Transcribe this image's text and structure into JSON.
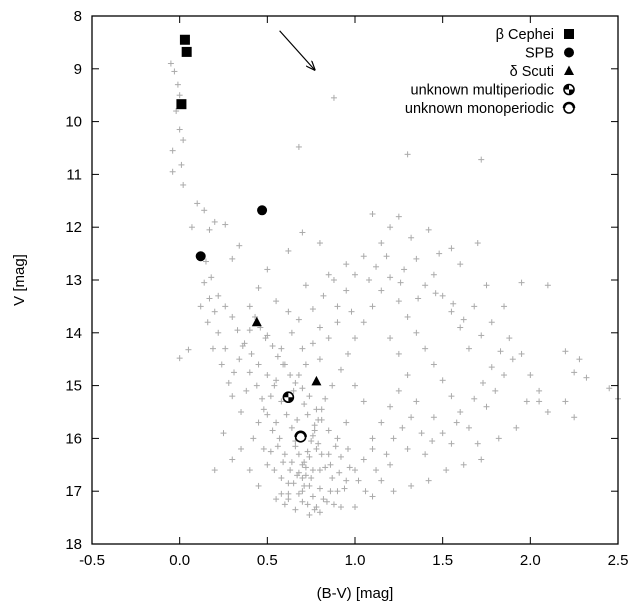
{
  "chart_data": {
    "type": "scatter",
    "title": "",
    "xlabel": "(B-V) [mag]",
    "ylabel": "V [mag]",
    "xlim": [
      -0.5,
      2.5
    ],
    "ylim": [
      18,
      8
    ],
    "y_inverted": true,
    "grid": false,
    "legend_position": "top-right",
    "xticks": [
      -0.5,
      0.0,
      0.5,
      1.0,
      1.5,
      2.0,
      2.5
    ],
    "xtick_labels": [
      "-0.5",
      "0.0",
      "0.5",
      "1.0",
      "1.5",
      "2.0",
      "2.5"
    ],
    "yticks": [
      8,
      9,
      10,
      11,
      12,
      13,
      14,
      15,
      16,
      17,
      18
    ],
    "ytick_labels": [
      "8",
      "9",
      "10",
      "11",
      "12",
      "13",
      "14",
      "15",
      "16",
      "17",
      "18"
    ],
    "background_color": "#aaaaaa",
    "reddening_arrow": {
      "from": [
        0.57,
        8.28
      ],
      "to": [
        0.77,
        9.02
      ]
    },
    "series": [
      {
        "name": "β Cephei",
        "marker": "square",
        "color": "#000000",
        "points": [
          [
            0.03,
            8.45
          ],
          [
            0.04,
            8.68
          ],
          [
            0.01,
            9.67
          ]
        ]
      },
      {
        "name": "SPB",
        "marker": "circle",
        "color": "#000000",
        "points": [
          [
            0.47,
            11.68
          ],
          [
            0.12,
            12.55
          ]
        ]
      },
      {
        "name": "δ Scuti",
        "marker": "triangle",
        "color": "#000000",
        "points": [
          [
            0.44,
            13.8
          ],
          [
            0.78,
            14.92
          ]
        ]
      },
      {
        "name": "unknown multiperiodic",
        "marker": "quarter-circle",
        "color": "#000000",
        "points": [
          [
            0.62,
            15.22
          ]
        ]
      },
      {
        "name": "unknown monoperiodic",
        "marker": "ring",
        "color": "#000000",
        "points": [
          [
            0.69,
            15.97
          ]
        ]
      }
    ],
    "background_stars": {
      "marker": "plus",
      "color": "#aaaaaa",
      "points": [
        [
          -0.05,
          8.9
        ],
        [
          -0.03,
          9.05
        ],
        [
          -0.01,
          9.3
        ],
        [
          0.0,
          9.5
        ],
        [
          -0.02,
          9.8
        ],
        [
          0.0,
          10.15
        ],
        [
          0.02,
          10.35
        ],
        [
          -0.04,
          10.55
        ],
        [
          0.01,
          10.82
        ],
        [
          0.02,
          11.2
        ],
        [
          -0.04,
          10.95
        ],
        [
          0.0,
          14.48
        ],
        [
          0.05,
          14.32
        ],
        [
          0.68,
          10.48
        ],
        [
          0.88,
          9.55
        ],
        [
          1.3,
          10.62
        ],
        [
          1.72,
          10.72
        ],
        [
          0.1,
          11.55
        ],
        [
          0.14,
          11.68
        ],
        [
          0.2,
          11.9
        ],
        [
          0.17,
          12.05
        ],
        [
          0.26,
          11.95
        ],
        [
          0.34,
          12.35
        ],
        [
          0.07,
          12.0
        ],
        [
          0.3,
          12.6
        ],
        [
          0.5,
          12.8
        ],
        [
          0.62,
          12.45
        ],
        [
          0.7,
          12.1
        ],
        [
          0.8,
          12.3
        ],
        [
          0.95,
          12.7
        ],
        [
          1.1,
          11.75
        ],
        [
          1.2,
          12.0
        ],
        [
          1.25,
          11.8
        ],
        [
          1.35,
          12.6
        ],
        [
          1.45,
          12.9
        ],
        [
          1.55,
          12.4
        ],
        [
          1.7,
          12.3
        ],
        [
          1.75,
          13.1
        ],
        [
          1.85,
          13.5
        ],
        [
          1.95,
          13.05
        ],
        [
          2.1,
          13.1
        ],
        [
          2.2,
          14.35
        ],
        [
          2.25,
          14.75
        ],
        [
          2.28,
          14.5
        ],
        [
          2.32,
          14.85
        ],
        [
          1.98,
          15.3
        ],
        [
          2.05,
          15.3
        ],
        [
          2.2,
          15.3
        ],
        [
          2.25,
          15.6
        ],
        [
          2.45,
          15.05
        ],
        [
          2.5,
          15.25
        ],
        [
          0.15,
          12.65
        ],
        [
          0.18,
          12.95
        ],
        [
          0.22,
          13.3
        ],
        [
          0.26,
          13.5
        ],
        [
          0.3,
          13.7
        ],
        [
          0.33,
          13.95
        ],
        [
          0.37,
          14.2
        ],
        [
          0.41,
          14.4
        ],
        [
          0.45,
          14.6
        ],
        [
          0.5,
          14.8
        ],
        [
          0.54,
          15.0
        ],
        [
          0.58,
          15.3
        ],
        [
          0.61,
          15.55
        ],
        [
          0.64,
          15.8
        ],
        [
          0.66,
          16.05
        ],
        [
          0.68,
          16.3
        ],
        [
          0.7,
          16.5
        ],
        [
          0.72,
          16.7
        ],
        [
          0.74,
          16.9
        ],
        [
          0.76,
          17.1
        ],
        [
          0.78,
          17.3
        ],
        [
          0.8,
          17.4
        ],
        [
          0.84,
          17.2
        ],
        [
          0.9,
          17.0
        ],
        [
          0.95,
          16.8
        ],
        [
          1.0,
          16.6
        ],
        [
          1.05,
          16.4
        ],
        [
          1.1,
          16.2
        ],
        [
          0.4,
          16.6
        ],
        [
          0.5,
          16.5
        ],
        [
          0.45,
          16.9
        ],
        [
          0.55,
          17.15
        ],
        [
          0.6,
          17.25
        ],
        [
          0.62,
          17.05
        ],
        [
          0.65,
          16.85
        ],
        [
          0.68,
          16.65
        ],
        [
          0.71,
          16.45
        ],
        [
          0.73,
          16.25
        ],
        [
          0.75,
          16.05
        ],
        [
          0.77,
          15.85
        ],
        [
          0.79,
          15.65
        ],
        [
          0.81,
          15.45
        ],
        [
          0.83,
          15.25
        ],
        [
          0.87,
          15.0
        ],
        [
          0.92,
          14.7
        ],
        [
          0.96,
          14.4
        ],
        [
          1.0,
          14.1
        ],
        [
          1.05,
          13.8
        ],
        [
          1.1,
          13.5
        ],
        [
          1.15,
          13.2
        ],
        [
          1.2,
          12.95
        ],
        [
          0.9,
          13.5
        ],
        [
          0.8,
          13.9
        ],
        [
          0.7,
          14.3
        ],
        [
          0.6,
          14.6
        ],
        [
          0.55,
          14.9
        ],
        [
          0.52,
          15.2
        ],
        [
          0.48,
          15.45
        ],
        [
          0.45,
          15.7
        ],
        [
          0.42,
          16.0
        ],
        [
          0.35,
          16.2
        ],
        [
          0.3,
          16.4
        ],
        [
          0.25,
          15.9
        ],
        [
          0.2,
          16.6
        ],
        [
          0.35,
          15.5
        ],
        [
          0.38,
          15.1
        ],
        [
          0.31,
          14.75
        ],
        [
          0.26,
          14.3
        ],
        [
          0.22,
          14.0
        ],
        [
          0.2,
          13.6
        ],
        [
          0.17,
          13.35
        ],
        [
          0.14,
          13.05
        ],
        [
          0.45,
          13.15
        ],
        [
          0.55,
          13.4
        ],
        [
          0.62,
          13.6
        ],
        [
          0.72,
          13.1
        ],
        [
          0.85,
          12.9
        ],
        [
          0.95,
          13.2
        ],
        [
          1.05,
          12.55
        ],
        [
          1.15,
          12.3
        ],
        [
          1.25,
          13.4
        ],
        [
          1.3,
          13.7
        ],
        [
          1.35,
          14.0
        ],
        [
          1.4,
          14.3
        ],
        [
          1.45,
          14.6
        ],
        [
          1.5,
          14.9
        ],
        [
          1.55,
          15.2
        ],
        [
          1.6,
          15.5
        ],
        [
          1.65,
          15.8
        ],
        [
          1.7,
          16.1
        ],
        [
          1.75,
          15.4
        ],
        [
          1.8,
          15.1
        ],
        [
          1.85,
          14.8
        ],
        [
          1.9,
          14.5
        ],
        [
          1.65,
          14.3
        ],
        [
          1.6,
          13.9
        ],
        [
          1.55,
          13.6
        ],
        [
          1.5,
          13.3
        ],
        [
          1.4,
          13.1
        ],
        [
          1.3,
          14.8
        ],
        [
          1.25,
          15.1
        ],
        [
          1.2,
          15.4
        ],
        [
          1.15,
          15.7
        ],
        [
          1.1,
          16.0
        ],
        [
          1.05,
          15.3
        ],
        [
          1.0,
          15.0
        ],
        [
          0.95,
          15.7
        ],
        [
          0.9,
          16.0
        ],
        [
          0.85,
          16.3
        ],
        [
          0.8,
          16.6
        ],
        [
          0.78,
          16.2
        ],
        [
          0.75,
          16.75
        ],
        [
          0.7,
          17.0
        ],
        [
          0.66,
          17.35
        ],
        [
          0.63,
          16.6
        ],
        [
          0.6,
          16.3
        ],
        [
          0.57,
          16.0
        ],
        [
          0.55,
          15.7
        ],
        [
          0.52,
          16.25
        ],
        [
          0.48,
          16.2
        ],
        [
          0.65,
          15.1
        ],
        [
          0.68,
          14.8
        ],
        [
          0.72,
          14.6
        ],
        [
          0.76,
          14.2
        ],
        [
          0.8,
          14.5
        ],
        [
          0.85,
          14.1
        ],
        [
          0.9,
          13.8
        ],
        [
          0.98,
          13.6
        ],
        [
          1.2,
          14.1
        ],
        [
          1.25,
          14.4
        ],
        [
          1.35,
          15.3
        ],
        [
          1.45,
          15.6
        ],
        [
          1.5,
          15.9
        ],
        [
          1.55,
          16.1
        ],
        [
          1.4,
          16.3
        ],
        [
          1.3,
          16.2
        ],
        [
          1.2,
          16.5
        ],
        [
          1.15,
          16.8
        ],
        [
          1.1,
          17.1
        ],
        [
          1.0,
          17.3
        ],
        [
          0.92,
          17.3
        ],
        [
          0.86,
          17.0
        ],
        [
          0.74,
          17.45
        ],
        [
          0.7,
          17.2
        ],
        [
          0.58,
          16.75
        ],
        [
          0.54,
          16.6
        ],
        [
          0.3,
          15.2
        ],
        [
          0.28,
          14.95
        ],
        [
          0.24,
          14.6
        ],
        [
          0.19,
          14.3
        ],
        [
          0.16,
          13.8
        ],
        [
          0.12,
          13.5
        ],
        [
          0.4,
          13.5
        ],
        [
          0.5,
          14.05
        ],
        [
          0.58,
          14.3
        ],
        [
          0.64,
          14.0
        ],
        [
          0.68,
          13.75
        ],
        [
          0.76,
          13.55
        ],
        [
          0.82,
          13.3
        ],
        [
          0.88,
          13.0
        ],
        [
          1.0,
          12.9
        ],
        [
          1.08,
          13.0
        ],
        [
          1.12,
          12.75
        ],
        [
          1.18,
          12.55
        ],
        [
          1.28,
          12.8
        ],
        [
          1.32,
          12.2
        ],
        [
          1.42,
          12.05
        ],
        [
          1.48,
          12.5
        ],
        [
          1.6,
          12.7
        ],
        [
          1.68,
          13.5
        ],
        [
          1.78,
          13.8
        ],
        [
          1.88,
          14.1
        ],
        [
          1.95,
          14.4
        ],
        [
          2.0,
          14.8
        ],
        [
          2.05,
          15.1
        ],
        [
          2.1,
          15.5
        ],
        [
          1.92,
          15.8
        ],
        [
          1.82,
          16.0
        ],
        [
          1.72,
          16.4
        ],
        [
          1.62,
          16.5
        ],
        [
          1.52,
          16.6
        ],
        [
          1.42,
          16.8
        ],
        [
          1.32,
          16.9
        ],
        [
          1.22,
          17.0
        ],
        [
          0.67,
          15.65
        ],
        [
          0.71,
          15.35
        ],
        [
          0.69,
          15.95
        ],
        [
          0.73,
          15.55
        ],
        [
          0.77,
          15.75
        ],
        [
          0.66,
          16.15
        ],
        [
          0.74,
          16.35
        ],
        [
          0.7,
          16.75
        ],
        [
          0.8,
          16.95
        ],
        [
          0.83,
          16.55
        ],
        [
          0.87,
          16.75
        ],
        [
          0.79,
          16.1
        ],
        [
          0.76,
          15.95
        ],
        [
          0.72,
          16.55
        ],
        [
          0.64,
          16.45
        ],
        [
          0.62,
          16.85
        ],
        [
          0.68,
          17.05
        ],
        [
          0.73,
          17.25
        ],
        [
          0.77,
          17.35
        ],
        [
          0.82,
          17.15
        ],
        [
          0.88,
          17.25
        ],
        [
          0.94,
          16.95
        ],
        [
          0.97,
          16.55
        ],
        [
          0.92,
          16.35
        ],
        [
          0.89,
          16.15
        ],
        [
          0.85,
          15.85
        ],
        [
          0.81,
          15.65
        ],
        [
          0.78,
          15.45
        ],
        [
          0.74,
          15.2
        ],
        [
          0.7,
          15.05
        ],
        [
          0.66,
          14.95
        ],
        [
          0.63,
          14.8
        ],
        [
          0.59,
          14.6
        ],
        [
          0.56,
          14.45
        ],
        [
          0.53,
          14.25
        ],
        [
          0.49,
          14.1
        ],
        [
          0.46,
          13.9
        ],
        [
          0.43,
          13.7
        ],
        [
          0.4,
          13.95
        ],
        [
          0.36,
          14.25
        ],
        [
          0.34,
          14.5
        ],
        [
          0.4,
          14.75
        ],
        [
          0.44,
          15.0
        ],
        [
          0.47,
          15.25
        ],
        [
          0.5,
          15.55
        ],
        [
          0.53,
          15.85
        ],
        [
          0.56,
          16.15
        ],
        [
          0.59,
          16.45
        ],
        [
          0.58,
          17.05
        ],
        [
          0.62,
          17.15
        ],
        [
          0.67,
          16.7
        ],
        [
          0.71,
          16.9
        ],
        [
          0.76,
          16.6
        ],
        [
          0.81,
          16.3
        ],
        [
          0.86,
          16.5
        ],
        [
          0.91,
          16.65
        ],
        [
          0.96,
          16.2
        ],
        [
          1.02,
          16.8
        ],
        [
          1.06,
          17.0
        ],
        [
          1.12,
          16.6
        ],
        [
          1.18,
          16.3
        ],
        [
          1.22,
          16.0
        ],
        [
          1.27,
          15.8
        ],
        [
          1.32,
          15.6
        ],
        [
          1.38,
          15.9
        ],
        [
          1.44,
          16.05
        ],
        [
          1.58,
          15.7
        ],
        [
          1.68,
          15.25
        ],
        [
          1.73,
          14.95
        ],
        [
          1.78,
          14.65
        ],
        [
          1.83,
          14.35
        ],
        [
          1.72,
          14.05
        ],
        [
          1.62,
          13.75
        ],
        [
          1.56,
          13.45
        ],
        [
          1.46,
          13.25
        ],
        [
          1.36,
          13.35
        ],
        [
          1.26,
          13.05
        ]
      ]
    }
  }
}
